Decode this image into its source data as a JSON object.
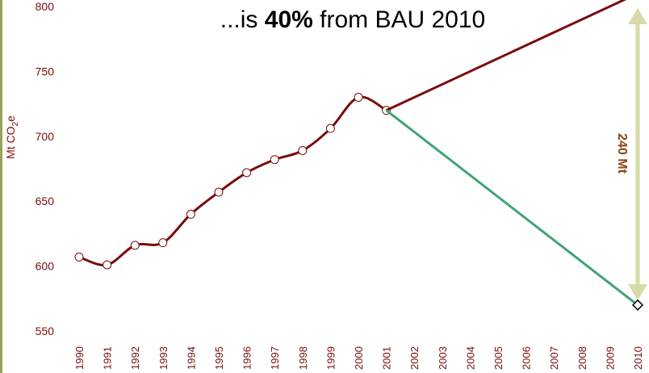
{
  "chart_data": {
    "type": "line",
    "title_parts": [
      {
        "text": "...is ",
        "bold": false
      },
      {
        "text": "40%",
        "bold": true
      },
      {
        "text": " from BAU 2010",
        "bold": false
      }
    ],
    "y_label": {
      "main": "Mt CO",
      "sub": "2",
      "tail": "e"
    },
    "annotation": "240 Mt",
    "xlim": [
      1990,
      2010
    ],
    "xticks": [
      1990,
      1991,
      1992,
      1993,
      1994,
      1995,
      1996,
      1997,
      1998,
      1999,
      2000,
      2001,
      2002,
      2003,
      2004,
      2005,
      2006,
      2007,
      2008,
      2009,
      2010
    ],
    "ylim": [
      550,
      800
    ],
    "yticks": [
      550,
      600,
      650,
      700,
      750,
      800
    ],
    "series": [
      {
        "color": "#7a0c0c",
        "smooth": true,
        "marker": "circle",
        "x": [
          1990,
          1991,
          1992,
          1993,
          1994,
          1995,
          1996,
          1997,
          1998,
          1999,
          2000,
          2001
        ],
        "values": [
          607,
          601,
          616,
          618,
          640,
          657,
          672,
          682,
          689,
          706,
          730,
          720
        ]
      },
      {
        "color": "#7a0c0c",
        "smooth": false,
        "marker": "end-diamond",
        "x": [
          2001,
          2010
        ],
        "values": [
          720,
          810
        ]
      },
      {
        "color": "#3ea474",
        "smooth": false,
        "marker": "end-diamond",
        "x": [
          2001,
          2010
        ],
        "values": [
          720,
          570
        ]
      }
    ],
    "arrow_color": "#d7dca4",
    "text_color": "#7a0c0c"
  }
}
